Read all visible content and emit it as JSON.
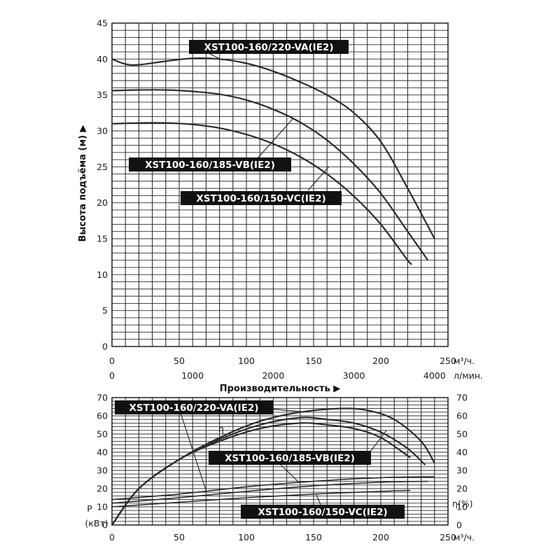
{
  "chart_data": [
    {
      "type": "line",
      "ylabel": "Высота подъёма (м) ▶",
      "xlabel": "Производительность ▶",
      "x_unit": "м³/ч.",
      "x2_unit": "л/мин.",
      "xlim": [
        0,
        250
      ],
      "ylim": [
        0,
        45
      ],
      "x_ticks": [
        "0",
        "50",
        "100",
        "150",
        "200",
        "250"
      ],
      "x2_ticks": [
        "0",
        "1000",
        "2000",
        "3000",
        "4000"
      ],
      "y_ticks": [
        "0",
        "5",
        "10",
        "15",
        "20",
        "25",
        "30",
        "35",
        "40",
        "45"
      ],
      "grid": true,
      "series": [
        {
          "name": "XST100-160/220-VA(IE2)",
          "x": [
            0,
            10,
            20,
            40,
            60,
            80,
            100,
            120,
            140,
            160,
            180,
            200,
            220,
            240
          ],
          "y": [
            40.0,
            39.3,
            39.2,
            39.7,
            40.1,
            40.0,
            39.4,
            38.3,
            36.8,
            35.0,
            32.5,
            28.5,
            22.0,
            15.0
          ]
        },
        {
          "name": "XST100-160/185-VB(IE2)",
          "x": [
            0,
            20,
            40,
            60,
            80,
            100,
            120,
            140,
            160,
            180,
            200,
            220,
            235
          ],
          "y": [
            35.6,
            35.7,
            35.7,
            35.5,
            35.1,
            34.3,
            33.0,
            31.2,
            28.7,
            25.4,
            21.3,
            16.0,
            12.0
          ]
        },
        {
          "name": "XST100-160/150-VC(IE2)",
          "x": [
            0,
            20,
            40,
            60,
            80,
            100,
            120,
            140,
            160,
            180,
            200,
            220,
            223
          ],
          "y": [
            31.0,
            31.1,
            31.1,
            30.9,
            30.4,
            29.5,
            28.2,
            26.4,
            24.0,
            20.9,
            17.0,
            12.0,
            11.5
          ]
        }
      ],
      "curve_labels": [
        "XST100-160/220-VA(IE2)",
        "XST100-160/185-VB(IE2)",
        "XST100-160/150-VC(IE2)"
      ]
    },
    {
      "type": "line",
      "xlim": [
        0,
        250
      ],
      "ylim": [
        0,
        70
      ],
      "x_unit": "м³/ч.",
      "x_ticks": [
        "0",
        "50",
        "100",
        "150",
        "200",
        "250"
      ],
      "y_ticks": [
        "0",
        "10",
        "20",
        "30",
        "40",
        "50",
        "60",
        "70"
      ],
      "y2_ticks": [
        "0",
        "10",
        "20",
        "30",
        "40",
        "50",
        "60",
        "70"
      ],
      "ylabel_lines": [
        "P",
        "(кВт)"
      ],
      "y2label": "η(%)",
      "eta_label": "η",
      "grid": true,
      "series": [
        {
          "name": "XST100-160/220-VA(IE2)",
          "kind": "efficiency",
          "x": [
            0,
            20,
            50,
            80,
            110,
            140,
            170,
            190,
            210,
            230,
            240
          ],
          "y": [
            0,
            20,
            36,
            48,
            57,
            62,
            64,
            63,
            58,
            46,
            34
          ]
        },
        {
          "name": "XST100-160/185-VB(IE2)",
          "kind": "efficiency",
          "x": [
            0,
            20,
            50,
            80,
            110,
            140,
            160,
            180,
            200,
            220,
            233
          ],
          "y": [
            0,
            20,
            36,
            47,
            55,
            59,
            58,
            56,
            51,
            42,
            33
          ]
        },
        {
          "name": "XST100-160/150-VC(IE2)",
          "kind": "efficiency",
          "x": [
            0,
            20,
            50,
            80,
            110,
            140,
            160,
            180,
            200,
            222
          ],
          "y": [
            0,
            20,
            36,
            46,
            53,
            56,
            55,
            53,
            48,
            37
          ]
        },
        {
          "name": "XST100-160/220-VA(IE2)",
          "kind": "power",
          "x": [
            0,
            50,
            100,
            150,
            200,
            240
          ],
          "y": [
            14,
            17,
            21,
            24,
            26,
            26.5
          ]
        },
        {
          "name": "XST100-160/185-VB(IE2)",
          "kind": "power",
          "x": [
            0,
            50,
            100,
            150,
            200,
            235
          ],
          "y": [
            12,
            15,
            18.5,
            21.5,
            23.5,
            24
          ]
        },
        {
          "name": "XST100-160/150-VC(IE2)",
          "kind": "power",
          "x": [
            0,
            50,
            100,
            150,
            200,
            222
          ],
          "y": [
            10,
            12.5,
            15,
            17,
            18.5,
            19
          ]
        }
      ],
      "curve_labels": [
        "XST100-160/220-VA(IE2)",
        "XST100-160/185-VB(IE2)",
        "XST100-160/150-VC(IE2)"
      ]
    }
  ]
}
